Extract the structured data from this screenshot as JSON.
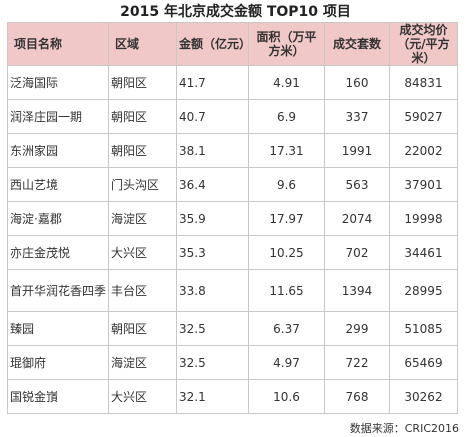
{
  "title": "2015 年北京成交金额 TOP10 项目",
  "table": {
    "headers": {
      "name": "项目名称",
      "district": "区域",
      "amount": "金额（亿元）",
      "area": "面积（万平方米）",
      "units": "成交套数",
      "avg_price": "成交均价（元/平方米）"
    },
    "rows": [
      {
        "name": "泛海国际",
        "district": "朝阳区",
        "amount": "41.7",
        "area": "4.91",
        "units": "160",
        "avg_price": "84831"
      },
      {
        "name": "润泽庄园一期",
        "district": "朝阳区",
        "amount": "40.7",
        "area": "6.9",
        "units": "337",
        "avg_price": "59027"
      },
      {
        "name": "东洲家园",
        "district": "朝阳区",
        "amount": "38.1",
        "area": "17.31",
        "units": "1991",
        "avg_price": "22002"
      },
      {
        "name": "西山艺境",
        "district": "门头沟区",
        "amount": "36.4",
        "area": "9.6",
        "units": "563",
        "avg_price": "37901"
      },
      {
        "name": "海淀·嘉郡",
        "district": "海淀区",
        "amount": "35.9",
        "area": "17.97",
        "units": "2074",
        "avg_price": "19998"
      },
      {
        "name": "亦庄金茂悦",
        "district": "大兴区",
        "amount": "35.3",
        "area": "10.25",
        "units": "702",
        "avg_price": "34461"
      },
      {
        "name": "首开华润花香四季",
        "district": "丰台区",
        "amount": "33.8",
        "area": "11.65",
        "units": "1394",
        "avg_price": "28995"
      },
      {
        "name": "臻园",
        "district": "朝阳区",
        "amount": "32.5",
        "area": "6.37",
        "units": "299",
        "avg_price": "51085"
      },
      {
        "name": "琨御府",
        "district": "海淀区",
        "amount": "32.5",
        "area": "4.97",
        "units": "722",
        "avg_price": "65469"
      },
      {
        "name": "国锐金嵿",
        "district": "大兴区",
        "amount": "32.1",
        "area": "10.6",
        "units": "768",
        "avg_price": "30262"
      }
    ]
  },
  "source": "数据来源：CRIC2016"
}
